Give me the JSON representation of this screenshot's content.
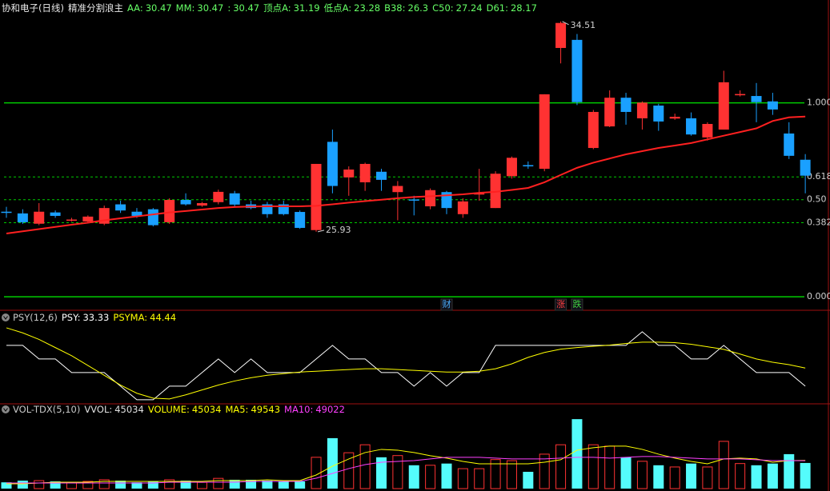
{
  "chart_data": [
    {
      "type": "candlestick",
      "title": "协和电子(日线)",
      "subtitle": "精准分割浪主",
      "indicators": [
        {
          "label": "AA:",
          "value": 30.47,
          "color": "#66ff66"
        },
        {
          "label": "MM:",
          "value": 30.47,
          "color": "#66ff66"
        },
        {
          "label": ":",
          "value": 30.47,
          "color": "#66ff66"
        },
        {
          "label": "顶点A:",
          "value": 31.19,
          "color": "#66ff66"
        },
        {
          "label": "低点A:",
          "value": 23.28,
          "color": "#66ff66"
        },
        {
          "label": "B38:",
          "value": 26.3,
          "color": "#66ff66"
        },
        {
          "label": "C50:",
          "value": 27.24,
          "color": "#66ff66"
        },
        {
          "label": "D61:",
          "value": 28.17,
          "color": "#66ff66"
        }
      ],
      "open": [
        26.75,
        26.68,
        26.26,
        26.72,
        26.4,
        26.35,
        26.26,
        27.05,
        26.75,
        26.85,
        26.32,
        27.23,
        27.0,
        27.14,
        27.5,
        27.05,
        27.05,
        27.05,
        26.74,
        26.0,
        29.6,
        28.15,
        27.95,
        28.38,
        27.55,
        27.25,
        26.97,
        27.55,
        26.65,
        27.45,
        26.9,
        28.2,
        28.65,
        28.5,
        33.43,
        33.76,
        29.35,
        30.23,
        31.4,
        30.56,
        31.08,
        30.55,
        30.56,
        29.78,
        30.1,
        31.5,
        31.47,
        31.25,
        29.94,
        28.87
      ],
      "high": [
        26.95,
        26.85,
        27.1,
        26.8,
        26.5,
        26.6,
        27.0,
        27.2,
        26.9,
        26.9,
        27.3,
        27.5,
        27.15,
        27.65,
        27.6,
        27.2,
        27.15,
        27.2,
        26.8,
        28.7,
        30.1,
        28.6,
        28.75,
        28.5,
        28.0,
        27.4,
        27.7,
        27.6,
        27.3,
        28.5,
        28.4,
        29.0,
        28.8,
        31.54,
        34.51,
        34.0,
        30.9,
        31.7,
        31.6,
        31.25,
        31.15,
        30.75,
        30.8,
        30.4,
        32.5,
        31.7,
        32.0,
        31.6,
        30.4,
        29.1
      ],
      "low": [
        26.5,
        26.25,
        26.2,
        26.5,
        26.35,
        26.3,
        26.2,
        26.7,
        26.5,
        26.15,
        26.25,
        27.0,
        26.95,
        27.05,
        26.95,
        26.85,
        26.5,
        26.6,
        26.05,
        25.93,
        27.5,
        27.4,
        27.6,
        27.6,
        26.4,
        26.6,
        26.85,
        26.65,
        26.5,
        27.2,
        26.9,
        28.1,
        28.5,
        28.4,
        32.8,
        31.1,
        29.3,
        30.2,
        30.3,
        30.1,
        30.05,
        30.5,
        29.85,
        29.65,
        30.1,
        31.45,
        30.4,
        30.7,
        28.9,
        27.5
      ],
      "close": [
        26.72,
        26.32,
        26.75,
        26.58,
        26.43,
        26.55,
        26.9,
        26.8,
        26.58,
        26.2,
        27.23,
        27.05,
        27.1,
        27.56,
        27.04,
        26.9,
        26.65,
        26.65,
        26.09,
        28.7,
        27.8,
        28.47,
        28.7,
        28.05,
        27.8,
        27.22,
        27.63,
        26.9,
        27.17,
        27.5,
        28.3,
        28.95,
        28.6,
        31.54,
        34.45,
        31.22,
        30.82,
        31.4,
        30.82,
        31.2,
        30.43,
        30.62,
        29.9,
        30.33,
        32.03,
        31.55,
        31.22,
        30.92,
        29.03,
        28.22
      ],
      "overlay": {
        "color": "#ff2020",
        "values": [
          25.86,
          25.95,
          26.04,
          26.13,
          26.22,
          26.3,
          26.4,
          26.48,
          26.56,
          26.64,
          26.72,
          26.78,
          26.84,
          26.9,
          26.94,
          26.96,
          26.97,
          26.97,
          26.97,
          26.99,
          27.05,
          27.12,
          27.18,
          27.24,
          27.3,
          27.35,
          27.38,
          27.42,
          27.46,
          27.52,
          27.56,
          27.64,
          27.72,
          27.95,
          28.25,
          28.54,
          28.75,
          28.92,
          29.09,
          29.22,
          29.35,
          29.45,
          29.55,
          29.7,
          29.85,
          30.0,
          30.15,
          30.45,
          30.6,
          30.63
        ]
      },
      "levels": [
        {
          "value": 31.19,
          "label": "1.000",
          "style": "solid"
        },
        {
          "value": 28.17,
          "label": "0.618",
          "style": "dashed"
        },
        {
          "value": 27.24,
          "label": "0.50",
          "style": "dashed"
        },
        {
          "value": 26.3,
          "label": "0.382",
          "style": "dashed"
        },
        {
          "value": 23.28,
          "label": "0.000",
          "style": "solid"
        }
      ],
      "level_color": "#00cc00",
      "events": [
        {
          "label": "财",
          "index": 27,
          "color": "#4ab0ff"
        },
        {
          "label": "涨",
          "index": 34,
          "color": "#ff4040"
        },
        {
          "label": "跌",
          "index": 35,
          "color": "#40d040"
        }
      ],
      "up_color": "#ff3232",
      "down_color": "#1aa0ff",
      "ylim": [
        22.99,
        35.06
      ]
    },
    {
      "type": "line",
      "title": "PSY(12,6)",
      "series": [
        {
          "name": "PSY:",
          "color": "#ffffff",
          "values": [
            58.33,
            58.33,
            50,
            50,
            41.67,
            41.67,
            41.67,
            33.33,
            25,
            25,
            33.33,
            33.33,
            41.67,
            50,
            41.67,
            50,
            41.67,
            41.67,
            41.67,
            50,
            58.33,
            50,
            50,
            41.67,
            41.67,
            33.33,
            41.67,
            33.33,
            41.67,
            41.67,
            58.33,
            58.33,
            58.33,
            58.33,
            58.33,
            58.33,
            58.33,
            58.33,
            58.33,
            66.67,
            58.33,
            58.33,
            50,
            50,
            58.33,
            50,
            41.67,
            41.67,
            41.67,
            33.33
          ]
        },
        {
          "name": "PSYMA:",
          "color": "#ffff00",
          "values": [
            69.1,
            66,
            62,
            57,
            52,
            46,
            40,
            34,
            29,
            26,
            25.5,
            28,
            31,
            34,
            36.5,
            38.5,
            40,
            41,
            42,
            42.5,
            43,
            43.5,
            44,
            44,
            43.5,
            43,
            42.5,
            42,
            42,
            42.5,
            44,
            47,
            51,
            54,
            56,
            57,
            57.8,
            58.5,
            59.5,
            60.3,
            60.3,
            60,
            59,
            57.5,
            55.9,
            53,
            50,
            48,
            46.5,
            44.44
          ]
        }
      ],
      "ylim": [
        22,
        73
      ]
    },
    {
      "type": "volume",
      "title": "VOL-TDX(5,10)",
      "legend": [
        {
          "label": "VVOL:",
          "value": 45034,
          "color": "#e0e0e0"
        },
        {
          "label": "VOLUME:",
          "value": 45034,
          "color": "#ffff00"
        }
      ],
      "values": [
        11000,
        14000,
        14000,
        12700,
        10000,
        12700,
        15500,
        14000,
        11000,
        12700,
        15500,
        14000,
        11000,
        18000,
        15500,
        15500,
        14000,
        12700,
        12700,
        55000,
        88600,
        63000,
        77000,
        55000,
        58000,
        41000,
        41000,
        44000,
        35000,
        35000,
        51000,
        49000,
        29500,
        60500,
        77000,
        122000,
        77000,
        74600,
        55000,
        48000,
        41000,
        38000,
        44000,
        38000,
        83000,
        44000,
        41000,
        44000,
        60500,
        45034
      ],
      "series": [
        {
          "name": "MA5:",
          "color": "#ffff00",
          "values": [
            8400,
            8400,
            9800,
            11300,
            11300,
            11300,
            12700,
            12700,
            12700,
            12700,
            12700,
            12700,
            12700,
            14100,
            14100,
            14100,
            15500,
            14100,
            14100,
            23900,
            39400,
            52100,
            63300,
            68900,
            67500,
            63300,
            57700,
            53500,
            47800,
            43600,
            43600,
            43600,
            43600,
            46400,
            50700,
            67500,
            71800,
            74600,
            74600,
            68900,
            60500,
            53500,
            47800,
            43600,
            52100,
            53500,
            52100,
            46400,
            49200,
            49543
          ]
        },
        {
          "name": "MA10:",
          "color": "#ff40ff",
          "values": [
            9800,
            9800,
            9800,
            9800,
            9800,
            9800,
            9800,
            9800,
            9800,
            9800,
            11300,
            11300,
            11300,
            11300,
            11300,
            12700,
            12700,
            12700,
            12700,
            18300,
            26700,
            35200,
            42200,
            46400,
            47800,
            49200,
            52100,
            54900,
            54900,
            54900,
            53500,
            52100,
            52100,
            52100,
            53500,
            54900,
            54900,
            53500,
            54900,
            56300,
            56300,
            54900,
            53500,
            52100,
            52100,
            52100,
            50700,
            49200,
            49200,
            49022
          ]
        }
      ],
      "up_color": "#ff3232",
      "down_color": "#54fcfc",
      "ylim": [
        0,
        125000
      ]
    }
  ]
}
